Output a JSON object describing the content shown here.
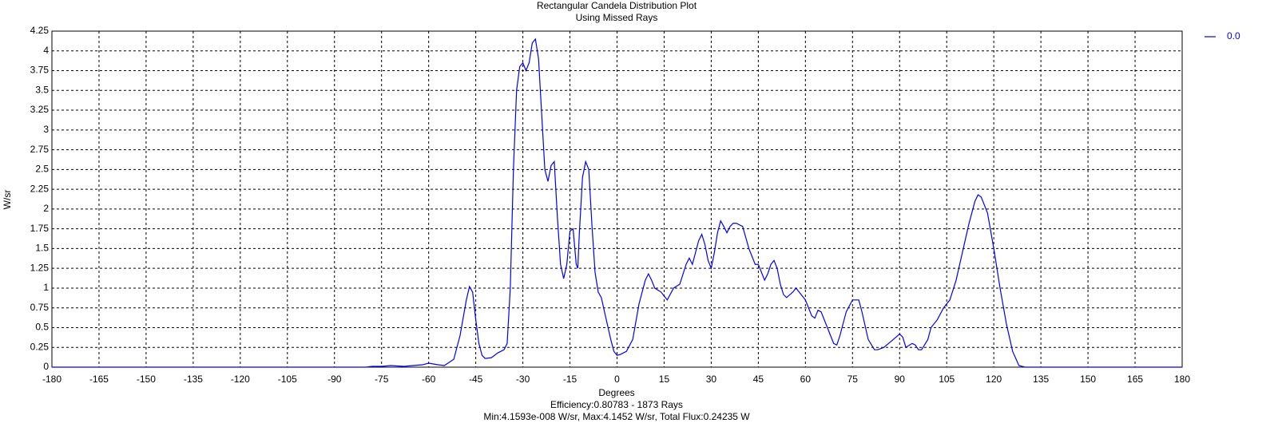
{
  "chart_data": {
    "type": "line",
    "title": "Rectangular Candela Distribution Plot",
    "subtitle": "Using Missed Rays",
    "xlabel": "Degrees",
    "ylabel": "W/sr",
    "annotations": [
      "Efficiency:0.80783 - 1873 Rays",
      "Min:4.1593e-008 W/sr, Max:4.1452 W/sr, Total Flux:0.24235 W"
    ],
    "x": [
      -180,
      -80,
      -78,
      -75,
      -72,
      -68,
      -65,
      -62,
      -60,
      -57,
      -55,
      -52,
      -50,
      -48,
      -47,
      -46,
      -45,
      -44,
      -43,
      -42,
      -40,
      -38,
      -36,
      -35,
      -34,
      -33,
      -32,
      -31,
      -30,
      -29,
      -28,
      -27,
      -26,
      -25,
      -24,
      -23,
      -22,
      -21,
      -20,
      -19,
      -18,
      -17,
      -16,
      -15,
      -14,
      -13,
      -12.5,
      -12,
      -11,
      -10,
      -9,
      -8,
      -7,
      -6,
      -5,
      -4,
      -2,
      -1,
      0,
      1,
      3,
      5,
      7,
      9,
      10,
      11,
      12,
      14,
      16,
      18,
      20,
      22,
      23,
      24,
      25,
      26,
      27,
      28,
      29,
      30,
      31,
      32,
      33,
      34,
      35,
      36,
      37,
      38,
      40,
      42,
      44,
      45,
      46,
      47,
      48,
      49,
      50,
      51,
      52,
      53,
      54,
      56,
      57,
      58,
      60,
      62,
      63,
      64,
      65,
      67,
      69,
      70,
      71,
      73,
      75,
      77,
      78,
      80,
      82,
      83,
      85,
      88,
      90,
      91,
      92,
      94,
      95,
      96,
      97,
      99,
      100,
      102,
      104,
      106,
      108,
      110,
      112,
      114,
      115,
      116,
      118,
      120,
      122,
      124,
      126,
      128,
      130,
      180
    ],
    "series": [
      {
        "name": "0.0",
        "color": "#0000ff",
        "values": [
          0,
          0,
          0.01,
          0.01,
          0.02,
          0.01,
          0.02,
          0.03,
          0.05,
          0.03,
          0.02,
          0.1,
          0.4,
          0.85,
          1.02,
          0.95,
          0.6,
          0.3,
          0.15,
          0.11,
          0.12,
          0.18,
          0.22,
          0.3,
          1.0,
          2.5,
          3.5,
          3.8,
          3.85,
          3.75,
          3.85,
          4.1,
          4.15,
          3.9,
          3.2,
          2.5,
          2.35,
          2.55,
          2.6,
          1.9,
          1.3,
          1.12,
          1.3,
          1.72,
          1.75,
          1.3,
          1.25,
          1.7,
          2.4,
          2.6,
          2.5,
          1.8,
          1.2,
          0.95,
          0.88,
          0.7,
          0.35,
          0.2,
          0.15,
          0.16,
          0.2,
          0.35,
          0.8,
          1.1,
          1.18,
          1.1,
          1.0,
          0.95,
          0.85,
          1.0,
          1.05,
          1.3,
          1.38,
          1.3,
          1.45,
          1.6,
          1.68,
          1.55,
          1.35,
          1.25,
          1.45,
          1.7,
          1.85,
          1.78,
          1.7,
          1.78,
          1.82,
          1.82,
          1.78,
          1.5,
          1.3,
          1.3,
          1.2,
          1.1,
          1.18,
          1.3,
          1.35,
          1.25,
          1.05,
          0.92,
          0.88,
          0.95,
          1.0,
          0.95,
          0.85,
          0.65,
          0.62,
          0.72,
          0.7,
          0.5,
          0.3,
          0.28,
          0.4,
          0.7,
          0.85,
          0.85,
          0.7,
          0.35,
          0.22,
          0.22,
          0.25,
          0.35,
          0.42,
          0.38,
          0.25,
          0.3,
          0.28,
          0.22,
          0.22,
          0.35,
          0.5,
          0.6,
          0.75,
          0.85,
          1.1,
          1.45,
          1.8,
          2.1,
          2.18,
          2.15,
          1.95,
          1.5,
          1.0,
          0.55,
          0.2,
          0.02,
          0,
          0
        ]
      }
    ],
    "xlim": [
      -180,
      180
    ],
    "xticks": [
      -180,
      -165,
      -150,
      -135,
      -120,
      -105,
      -90,
      -75,
      -60,
      -45,
      -30,
      -15,
      0,
      15,
      30,
      45,
      60,
      75,
      90,
      105,
      120,
      135,
      150,
      165,
      180
    ],
    "ylim": [
      0,
      4.25
    ],
    "yticks": [
      0,
      0.25,
      0.5,
      0.75,
      1,
      1.25,
      1.5,
      1.75,
      2,
      2.25,
      2.5,
      2.75,
      3,
      3.25,
      3.5,
      3.75,
      4,
      4.25
    ],
    "grid": true,
    "legend": "top-right"
  }
}
